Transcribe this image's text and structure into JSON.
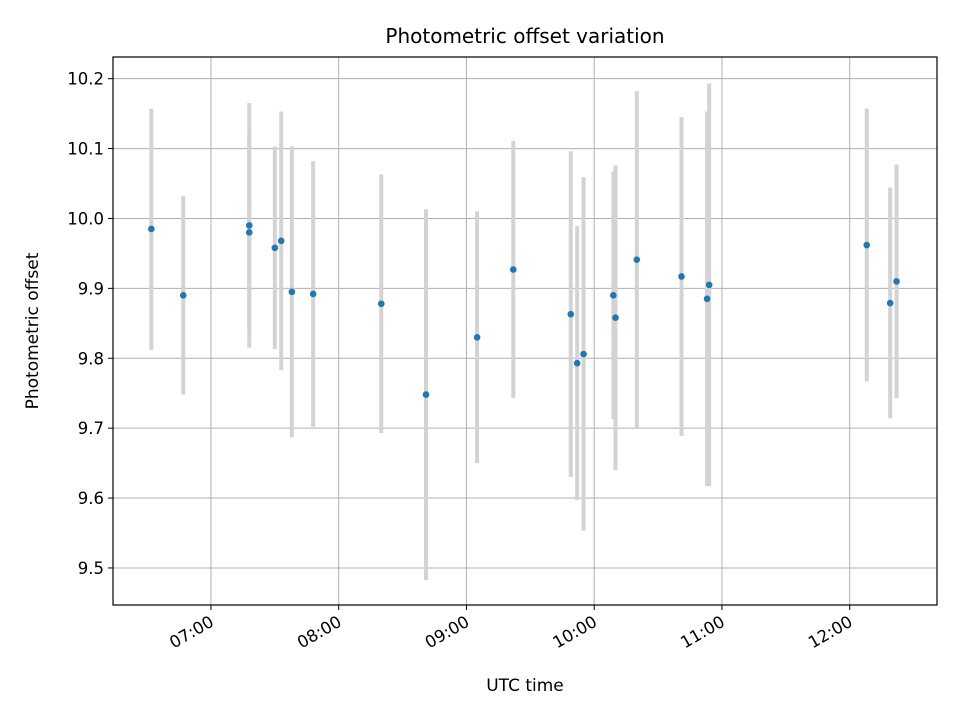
{
  "chart_data": {
    "type": "scatter",
    "title": "Photometric offset variation",
    "xlabel": "UTC time",
    "ylabel": "Photometric offset",
    "x_ticks": [
      "07:00",
      "08:00",
      "09:00",
      "10:00",
      "11:00",
      "12:00"
    ],
    "y_ticks": [
      "9.5",
      "9.6",
      "9.7",
      "9.8",
      "9.9",
      "10.0",
      "10.1",
      "10.2"
    ],
    "xlim": [
      "06:14",
      "12:41"
    ],
    "ylim": [
      9.447,
      10.231
    ],
    "grid": true,
    "marker_color": "#1f77b4",
    "errorbar_color": "#d3d3d3",
    "points": [
      {
        "x": "06:32",
        "y": 9.985,
        "low": 9.812,
        "high": 10.157
      },
      {
        "x": "06:47",
        "y": 9.89,
        "low": 9.748,
        "high": 10.032
      },
      {
        "x": "07:18",
        "y": 9.99,
        "low": 9.815,
        "high": 10.165
      },
      {
        "x": "07:18",
        "y": 9.98,
        "low": 9.84,
        "high": 10.12
      },
      {
        "x": "07:30",
        "y": 9.958,
        "low": 9.813,
        "high": 10.103
      },
      {
        "x": "07:33",
        "y": 9.968,
        "low": 9.783,
        "high": 10.153
      },
      {
        "x": "07:38",
        "y": 9.895,
        "low": 9.687,
        "high": 10.103
      },
      {
        "x": "07:48",
        "y": 9.892,
        "low": 9.702,
        "high": 10.082
      },
      {
        "x": "08:20",
        "y": 9.878,
        "low": 9.693,
        "high": 10.063
      },
      {
        "x": "08:41",
        "y": 9.748,
        "low": 9.483,
        "high": 10.013
      },
      {
        "x": "09:05",
        "y": 9.83,
        "low": 9.65,
        "high": 10.01
      },
      {
        "x": "09:22",
        "y": 9.927,
        "low": 9.743,
        "high": 10.111
      },
      {
        "x": "09:49",
        "y": 9.863,
        "low": 9.63,
        "high": 10.096
      },
      {
        "x": "09:52",
        "y": 9.793,
        "low": 9.597,
        "high": 9.989
      },
      {
        "x": "09:55",
        "y": 9.806,
        "low": 9.553,
        "high": 10.059
      },
      {
        "x": "10:09",
        "y": 9.89,
        "low": 9.713,
        "high": 10.067
      },
      {
        "x": "10:10",
        "y": 9.858,
        "low": 9.64,
        "high": 10.076
      },
      {
        "x": "10:20",
        "y": 9.941,
        "low": 9.7,
        "high": 10.182
      },
      {
        "x": "10:41",
        "y": 9.917,
        "low": 9.689,
        "high": 10.145
      },
      {
        "x": "10:53",
        "y": 9.885,
        "low": 9.617,
        "high": 10.153
      },
      {
        "x": "10:54",
        "y": 9.905,
        "low": 9.617,
        "high": 10.193
      },
      {
        "x": "12:08",
        "y": 9.962,
        "low": 9.767,
        "high": 10.157
      },
      {
        "x": "12:19",
        "y": 9.879,
        "low": 9.714,
        "high": 10.044
      },
      {
        "x": "12:22",
        "y": 9.91,
        "low": 9.743,
        "high": 10.077
      }
    ]
  }
}
